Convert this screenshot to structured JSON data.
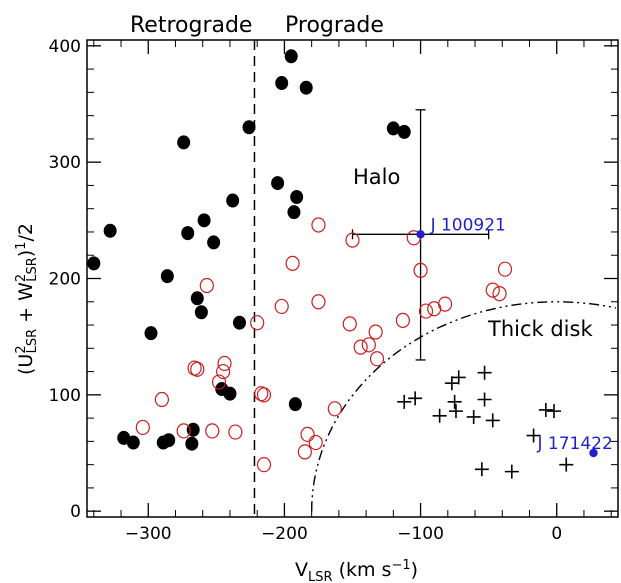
{
  "chart_data": {
    "type": "scatter",
    "title": "",
    "xlabel": "V_LSR (km s⁻¹)",
    "ylabel": "(U²LSR + W²LSR)¹/2",
    "xlim": [
      -345,
      45
    ],
    "ylim": [
      -5,
      405
    ],
    "x_ticks": [
      -300,
      -200,
      -100,
      0
    ],
    "y_ticks": [
      0,
      100,
      200,
      300,
      400
    ],
    "x_tick_labels": [
      "−300",
      "−200",
      "−100",
      "0"
    ],
    "y_tick_labels": [
      "0",
      "100",
      "200",
      "300",
      "400"
    ],
    "regions": {
      "retrograde": "Retrograde",
      "prograde": "Prograde",
      "halo": "Halo",
      "thick_disk": "Thick disk"
    },
    "divider_x": -222,
    "thick_disk_boundary": {
      "center_x": 0,
      "radius": 180
    },
    "series": [
      {
        "marker": "filled-circle",
        "color": "#000000",
        "points": [
          [
            -340,
            213
          ],
          [
            -328,
            241
          ],
          [
            -318,
            63
          ],
          [
            -311,
            59
          ],
          [
            -298,
            153
          ],
          [
            -289,
            59
          ],
          [
            -285,
            61
          ],
          [
            -286,
            202
          ],
          [
            -274,
            317
          ],
          [
            -271,
            239
          ],
          [
            -268,
            58
          ],
          [
            -267,
            70
          ],
          [
            -264,
            183
          ],
          [
            -261,
            171
          ],
          [
            -259,
            250
          ],
          [
            -252,
            231
          ],
          [
            -246,
            105
          ],
          [
            -240,
            101
          ],
          [
            -238,
            267
          ],
          [
            -233,
            162
          ],
          [
            -226,
            330
          ],
          [
            -205,
            282
          ],
          [
            -202,
            368
          ],
          [
            -195,
            391
          ],
          [
            -193,
            257
          ],
          [
            -191,
            270
          ],
          [
            -192,
            92
          ],
          [
            -184,
            364
          ],
          [
            -120,
            329
          ],
          [
            -112,
            326
          ]
        ]
      },
      {
        "marker": "open-circle",
        "color": "#cc1f1f",
        "points": [
          [
            -304,
            72
          ],
          [
            -290,
            96
          ],
          [
            -274,
            69
          ],
          [
            -266,
            123
          ],
          [
            -264,
            122
          ],
          [
            -257,
            194
          ],
          [
            -253,
            69
          ],
          [
            -248,
            111
          ],
          [
            -245,
            120
          ],
          [
            -244,
            127
          ],
          [
            -236,
            68
          ],
          [
            -220,
            162
          ],
          [
            -217,
            101
          ],
          [
            -215,
            100
          ],
          [
            -215,
            40
          ],
          [
            -202,
            176
          ],
          [
            -194,
            213
          ],
          [
            -185,
            51
          ],
          [
            -183,
            66
          ],
          [
            -177,
            59
          ],
          [
            -175,
            180
          ],
          [
            -175,
            246
          ],
          [
            -163,
            88
          ],
          [
            -152,
            161
          ],
          [
            -150,
            233
          ],
          [
            -144,
            141
          ],
          [
            -138,
            143
          ],
          [
            -133,
            154
          ],
          [
            -132,
            131
          ],
          [
            -113,
            164
          ],
          [
            -105,
            235
          ],
          [
            -100,
            207
          ],
          [
            -96,
            172
          ],
          [
            -90,
            174
          ],
          [
            -82,
            178
          ],
          [
            -47,
            190
          ],
          [
            -42,
            187
          ],
          [
            -38,
            208
          ]
        ]
      },
      {
        "marker": "plus",
        "color": "#000000",
        "points": [
          [
            -112,
            94
          ],
          [
            -104,
            97
          ],
          [
            -86,
            82
          ],
          [
            -77,
            110
          ],
          [
            -75,
            94
          ],
          [
            -74,
            86
          ],
          [
            -72,
            115
          ],
          [
            -61,
            81
          ],
          [
            -55,
            36
          ],
          [
            -53,
            119
          ],
          [
            -53,
            96
          ],
          [
            -47,
            78
          ],
          [
            -33,
            34
          ],
          [
            -17,
            65
          ],
          [
            -8,
            87
          ],
          [
            -2,
            86
          ],
          [
            7,
            40
          ]
        ]
      },
      {
        "marker": "blue-dot",
        "color": "#1f1fcc",
        "points": [
          [
            -100,
            238,
            "J 100921"
          ],
          [
            27,
            50,
            "J 171422"
          ]
        ]
      }
    ],
    "error_bar": {
      "x": -100,
      "y": 238,
      "x_range": [
        -150,
        -50
      ],
      "y_range": [
        130,
        345
      ]
    }
  }
}
